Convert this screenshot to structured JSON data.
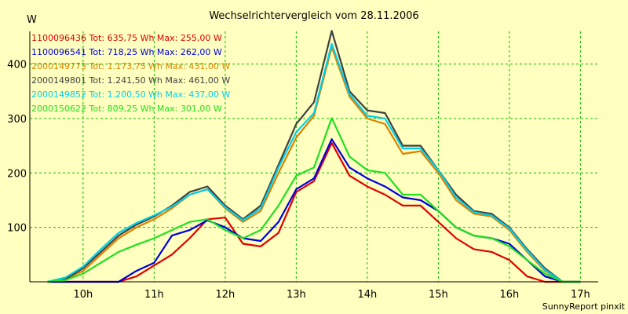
{
  "chart_data": {
    "type": "line",
    "title": "Wechselrichtervergleich vom 28.11.2006",
    "ylabel": "W",
    "footer": "SunnyReport pinxit",
    "background_color": "#ffffc0",
    "grid_color": "#00c000",
    "grid": true,
    "legend_position": "top-left",
    "ylim": [
      0,
      460
    ],
    "xlim": [
      9.25,
      17.25
    ],
    "x_ticks": [
      {
        "value": 10,
        "label": "10h"
      },
      {
        "value": 11,
        "label": "11h"
      },
      {
        "value": 12,
        "label": "12h"
      },
      {
        "value": 13,
        "label": "13h"
      },
      {
        "value": 14,
        "label": "14h"
      },
      {
        "value": 15,
        "label": "15h"
      },
      {
        "value": 16,
        "label": "16h"
      },
      {
        "value": 17,
        "label": "17h"
      }
    ],
    "y_ticks": [
      100,
      200,
      300,
      400
    ],
    "x": [
      9.5,
      9.75,
      10.0,
      10.25,
      10.5,
      10.75,
      11.0,
      11.25,
      11.5,
      11.75,
      12.0,
      12.25,
      12.5,
      12.75,
      13.0,
      13.25,
      13.5,
      13.75,
      14.0,
      14.25,
      14.5,
      14.75,
      15.0,
      15.25,
      15.5,
      15.75,
      16.0,
      16.25,
      16.5,
      16.75,
      17.0
    ],
    "series": [
      {
        "name": "1100096436",
        "legend": "1100096436 Tot: 635,75 Wh Max: 255,00 W",
        "color": "#e00000",
        "values": [
          0,
          0,
          0,
          0,
          0,
          10,
          30,
          50,
          80,
          115,
          118,
          70,
          65,
          90,
          165,
          185,
          255,
          195,
          175,
          160,
          140,
          140,
          110,
          80,
          60,
          55,
          40,
          10,
          0,
          0,
          0
        ]
      },
      {
        "name": "1100096541",
        "legend": "1100096541 Tot: 718,25 Wh Max: 262,00 W",
        "color": "#0000e0",
        "values": [
          0,
          0,
          0,
          0,
          0,
          20,
          35,
          85,
          95,
          113,
          100,
          80,
          75,
          110,
          170,
          190,
          262,
          210,
          190,
          175,
          155,
          150,
          130,
          100,
          85,
          80,
          70,
          40,
          10,
          0,
          0
        ]
      },
      {
        "name": "2000149773",
        "legend": "2000149773 Tot: 1.173,75 Wh Max: 431,00 W",
        "color": "#e08000",
        "values": [
          0,
          5,
          20,
          50,
          80,
          100,
          115,
          135,
          160,
          170,
          135,
          110,
          130,
          200,
          265,
          305,
          431,
          340,
          300,
          290,
          235,
          240,
          200,
          150,
          125,
          120,
          95,
          55,
          20,
          0,
          0
        ]
      },
      {
        "name": "2000149801",
        "legend": "2000149801 Tot: 1.241,50 Wh Max: 461,00 W",
        "color": "#404040",
        "values": [
          0,
          5,
          25,
          55,
          85,
          105,
          120,
          140,
          165,
          175,
          140,
          115,
          140,
          215,
          290,
          330,
          461,
          350,
          315,
          310,
          250,
          250,
          205,
          160,
          130,
          125,
          100,
          60,
          25,
          0,
          0
        ]
      },
      {
        "name": "2000149852",
        "legend": "2000149852 Tot: 1.200,50 Wh Max: 437,00 W",
        "color": "#00d0e8",
        "values": [
          0,
          8,
          28,
          60,
          90,
          108,
          122,
          138,
          160,
          170,
          137,
          113,
          135,
          210,
          275,
          310,
          437,
          345,
          305,
          300,
          245,
          245,
          205,
          155,
          128,
          122,
          98,
          58,
          22,
          0,
          0
        ]
      },
      {
        "name": "2000150622",
        "legend": "2000150622 Tot: 809,25 Wh Max: 301,00 W",
        "color": "#20e020",
        "values": [
          0,
          3,
          15,
          35,
          55,
          68,
          80,
          95,
          110,
          115,
          95,
          80,
          95,
          140,
          195,
          210,
          301,
          230,
          205,
          200,
          160,
          160,
          130,
          100,
          85,
          80,
          65,
          40,
          15,
          0,
          0
        ]
      }
    ]
  }
}
